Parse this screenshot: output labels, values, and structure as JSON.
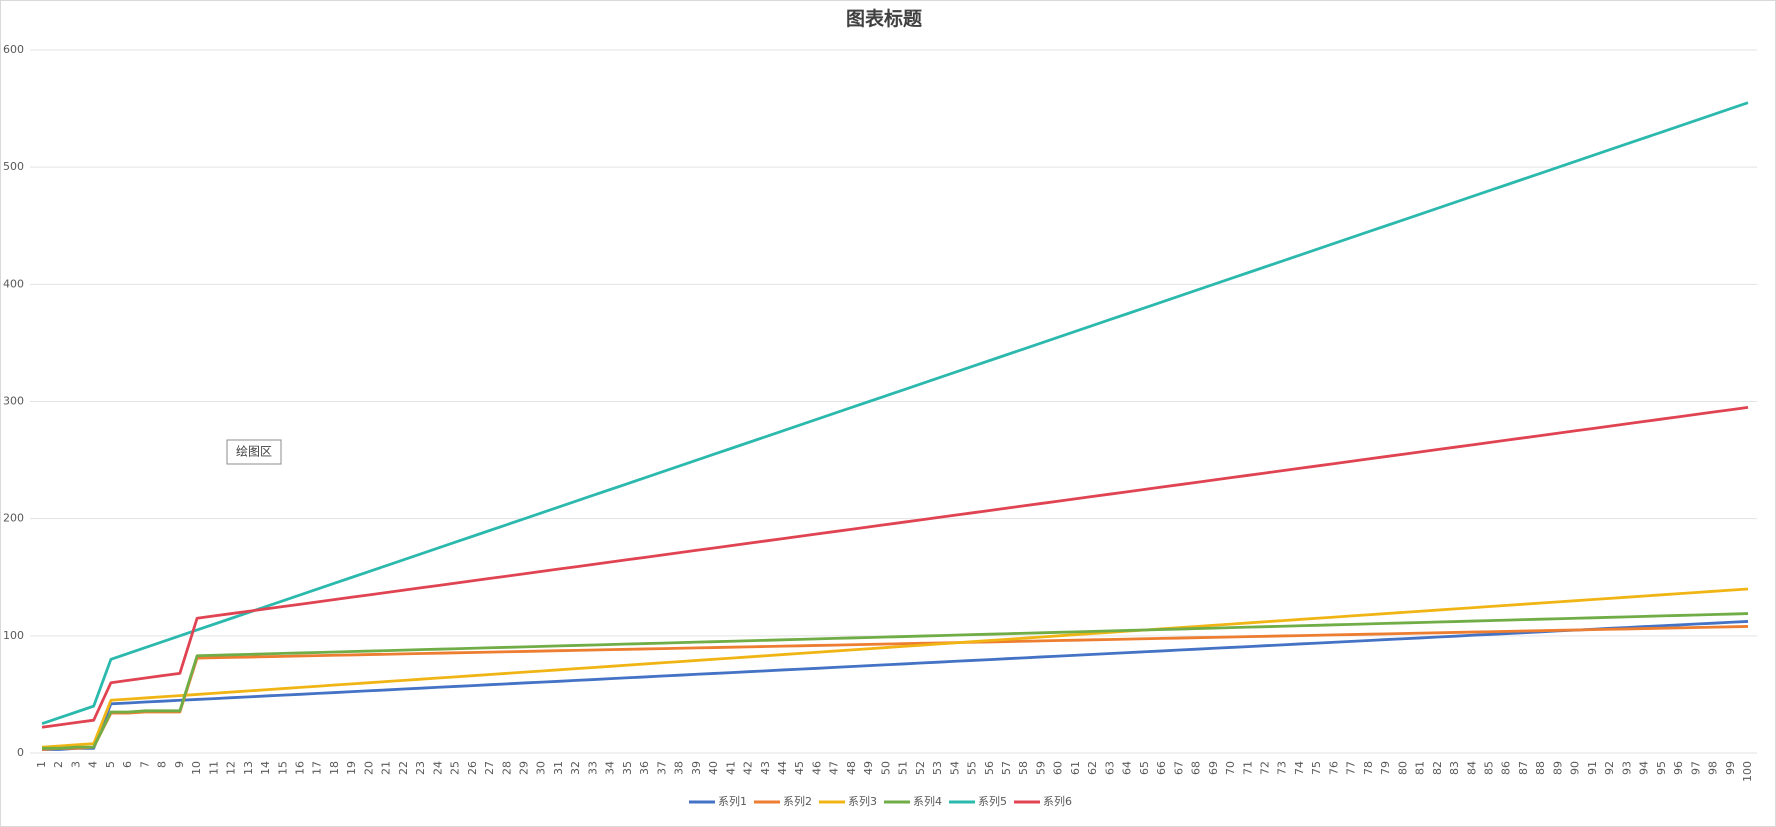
{
  "chart_data": {
    "type": "line",
    "title": "图表标题",
    "tooltip": "绘图区",
    "ylim": [
      0,
      600
    ],
    "yticks": [
      0,
      100,
      200,
      300,
      400,
      500,
      600
    ],
    "grid": true,
    "legend": "bottom",
    "categories": [
      "1",
      "2",
      "3",
      "4",
      "5",
      "6",
      "7",
      "8",
      "9",
      "10",
      "11",
      "12",
      "13",
      "14",
      "15",
      "16",
      "17",
      "18",
      "19",
      "20",
      "21",
      "22",
      "23",
      "24",
      "25",
      "26",
      "27",
      "28",
      "29",
      "30",
      "31",
      "32",
      "33",
      "34",
      "35",
      "36",
      "37",
      "38",
      "39",
      "40",
      "41",
      "42",
      "43",
      "44",
      "45",
      "46",
      "47",
      "48",
      "49",
      "50",
      "51",
      "52",
      "53",
      "54",
      "55",
      "56",
      "57",
      "58",
      "59",
      "60",
      "61",
      "62",
      "63",
      "64",
      "65",
      "66",
      "67",
      "68",
      "69",
      "70",
      "71",
      "72",
      "73",
      "74",
      "75",
      "76",
      "77",
      "78",
      "79",
      "80",
      "81",
      "82",
      "83",
      "84",
      "85",
      "86",
      "87",
      "88",
      "89",
      "90",
      "91",
      "92",
      "93",
      "94",
      "95",
      "96",
      "97",
      "98",
      "99",
      "100"
    ],
    "series": [
      {
        "name": "系列1",
        "color": "#4472c4",
        "values": [
          3,
          3,
          4,
          4,
          42,
          42.7,
          43.5,
          44.2,
          45,
          45.7,
          46.4,
          47.2,
          47.9,
          48.7,
          49.4,
          50.1,
          50.9,
          51.6,
          52.4,
          53.1,
          53.8,
          54.6,
          55.3,
          56.1,
          56.8,
          57.5,
          58.3,
          59,
          59.8,
          60.5,
          61.2,
          62,
          62.7,
          63.5,
          64.2,
          64.9,
          65.7,
          66.4,
          67.2,
          67.9,
          68.6,
          69.4,
          70.1,
          70.9,
          71.6,
          72.3,
          73.1,
          73.8,
          74.6,
          75.3,
          76,
          76.8,
          77.5,
          78.3,
          79,
          79.7,
          80.5,
          81.2,
          82,
          82.7,
          83.4,
          84.2,
          84.9,
          85.7,
          86.4,
          87.1,
          87.9,
          88.6,
          89.4,
          90.1,
          90.8,
          91.6,
          92.3,
          93.1,
          93.8,
          94.5,
          95.3,
          96,
          96.8,
          97.5,
          98.2,
          99,
          99.7,
          100.5,
          101.2,
          101.9,
          102.7,
          103.4,
          104.2,
          104.9,
          105.6,
          106.4,
          107.1,
          107.9,
          108.6,
          109.3,
          110.1,
          110.8,
          111.6,
          112.3
        ]
      },
      {
        "name": "系列2",
        "color": "#ed7d31",
        "values": [
          3,
          4,
          4,
          5,
          34,
          34,
          35,
          35,
          35,
          81,
          81.3,
          81.6,
          81.9,
          82.2,
          82.5,
          82.8,
          83.1,
          83.4,
          83.7,
          84,
          84.3,
          84.6,
          84.9,
          85.2,
          85.5,
          85.8,
          86.1,
          86.4,
          86.7,
          87,
          87.3,
          87.6,
          87.9,
          88.2,
          88.5,
          88.8,
          89.1,
          89.4,
          89.7,
          90,
          90.3,
          90.6,
          90.9,
          91.2,
          91.5,
          91.8,
          92.1,
          92.4,
          92.7,
          93,
          93.3,
          93.6,
          93.9,
          94.2,
          94.5,
          94.8,
          95.1,
          95.4,
          95.7,
          96,
          96.3,
          96.6,
          96.9,
          97.2,
          97.5,
          97.8,
          98.1,
          98.4,
          98.7,
          99,
          99.3,
          99.6,
          99.9,
          100.2,
          100.5,
          100.8,
          101.1,
          101.4,
          101.7,
          102,
          102.3,
          102.6,
          102.9,
          103.2,
          103.5,
          103.8,
          104.1,
          104.4,
          104.7,
          105,
          105.3,
          105.6,
          105.9,
          106.2,
          106.5,
          106.8,
          107.1,
          107.4,
          107.7,
          108
        ]
      },
      {
        "name": "系列3",
        "color": "#f0b515",
        "values": [
          5,
          6,
          7,
          8,
          45,
          46,
          47,
          48,
          49,
          50,
          51,
          52,
          53,
          54,
          55,
          56,
          57,
          58,
          59,
          60,
          61,
          62,
          63,
          64,
          65,
          66,
          67,
          68,
          69,
          70,
          71,
          72,
          73,
          74,
          75,
          76,
          77,
          78,
          79,
          80,
          81,
          82,
          83,
          84,
          85,
          86,
          87,
          88,
          89,
          90,
          91,
          92,
          93,
          94,
          95,
          96,
          97,
          98,
          99,
          100,
          101,
          102,
          103,
          104,
          105,
          106,
          107,
          108,
          109,
          110,
          111,
          112,
          113,
          114,
          115,
          116,
          117,
          118,
          119,
          120,
          121,
          122,
          123,
          124,
          125,
          126,
          127,
          128,
          129,
          130,
          131,
          132,
          133,
          134,
          135,
          136,
          137,
          138,
          139,
          140
        ]
      },
      {
        "name": "系列4",
        "color": "#70ad47",
        "values": [
          4,
          4,
          5,
          5,
          35,
          35,
          36,
          36,
          36,
          83,
          83.4,
          83.8,
          84.2,
          84.6,
          85,
          85.4,
          85.8,
          86.2,
          86.6,
          87,
          87.4,
          87.8,
          88.2,
          88.6,
          89,
          89.4,
          89.8,
          90.2,
          90.6,
          91,
          91.4,
          91.8,
          92.2,
          92.6,
          93,
          93.4,
          93.8,
          94.2,
          94.6,
          95,
          95.4,
          95.8,
          96.2,
          96.6,
          97,
          97.4,
          97.8,
          98.2,
          98.6,
          99,
          99.4,
          99.8,
          100.2,
          100.6,
          101,
          101.4,
          101.8,
          102.2,
          102.6,
          103,
          103.4,
          103.8,
          104.2,
          104.6,
          105,
          105.4,
          105.8,
          106.2,
          106.6,
          107,
          107.4,
          107.8,
          108.2,
          108.6,
          109,
          109.4,
          109.8,
          110.2,
          110.6,
          111,
          111.4,
          111.8,
          112.2,
          112.6,
          113,
          113.4,
          113.8,
          114.2,
          114.6,
          115,
          115.4,
          115.8,
          116.2,
          116.6,
          117,
          117.4,
          117.8,
          118.2,
          118.6,
          119
        ]
      },
      {
        "name": "系列5",
        "color": "#2cb9ad",
        "values": [
          25,
          30,
          35,
          40,
          80,
          85,
          90,
          95,
          100,
          105,
          110,
          115,
          120,
          125,
          130,
          135,
          140,
          145,
          150,
          155,
          160,
          165,
          170,
          175,
          180,
          185,
          190,
          195,
          200,
          205,
          210,
          215,
          220,
          225,
          230,
          235,
          240,
          245,
          250,
          255,
          260,
          265,
          270,
          275,
          280,
          285,
          290,
          295,
          300,
          305,
          310,
          315,
          320,
          325,
          330,
          335,
          340,
          345,
          350,
          355,
          360,
          365,
          370,
          375,
          380,
          385,
          390,
          395,
          400,
          405,
          410,
          415,
          420,
          425,
          430,
          435,
          440,
          445,
          450,
          455,
          460,
          465,
          470,
          475,
          480,
          485,
          490,
          495,
          500,
          505,
          510,
          515,
          520,
          525,
          530,
          535,
          540,
          545,
          550,
          555
        ]
      },
      {
        "name": "系列6",
        "color": "#e04452",
        "values": [
          22,
          24,
          26,
          28,
          60,
          62,
          64,
          66,
          68,
          115,
          117,
          119,
          121,
          123,
          125,
          127,
          129,
          131,
          133,
          135,
          137,
          139,
          141,
          143,
          145,
          147,
          149,
          151,
          153,
          155,
          157,
          159,
          161,
          163,
          165,
          167,
          169,
          171,
          173,
          175,
          177,
          179,
          181,
          183,
          185,
          187,
          189,
          191,
          193,
          195,
          197,
          199,
          201,
          203,
          205,
          207,
          209,
          211,
          213,
          215,
          217,
          219,
          221,
          223,
          225,
          227,
          229,
          231,
          233,
          235,
          237,
          239,
          241,
          243,
          245,
          247,
          249,
          251,
          253,
          255,
          257,
          259,
          261,
          263,
          265,
          267,
          269,
          271,
          273,
          275,
          277,
          279,
          281,
          283,
          285,
          287,
          289,
          291,
          293,
          295
        ]
      }
    ]
  }
}
